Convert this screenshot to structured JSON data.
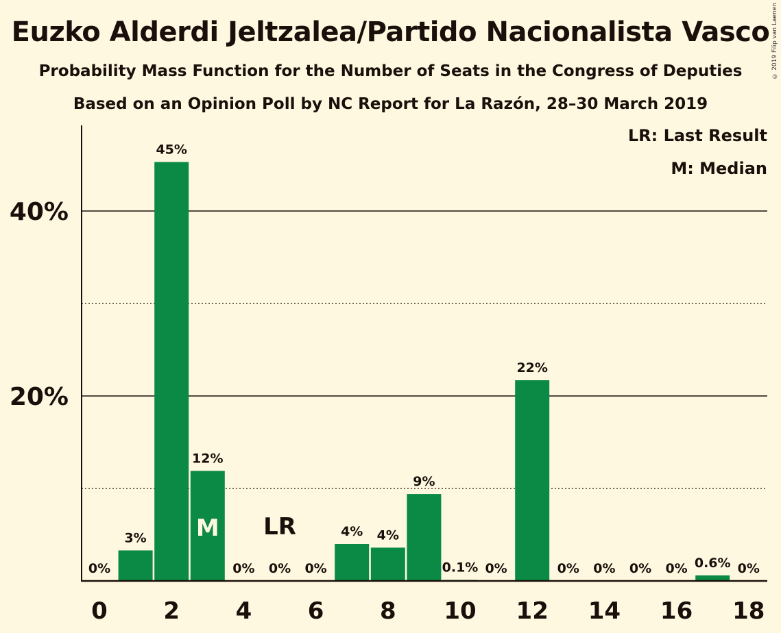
{
  "chart_data": {
    "type": "bar",
    "title": "Euzko Alderdi Jeltzalea/Partido Nacionalista Vasco",
    "subtitle": "Probability Mass Function for the Number of Seats in the Congress of Deputies",
    "subtitle2": "Based on an Opinion Poll by NC Report for La Razón, 28–30 March 2019",
    "copyright": "© 2019 Filip van Laenen",
    "categories": [
      0,
      1,
      2,
      3,
      4,
      5,
      6,
      7,
      8,
      9,
      10,
      11,
      12,
      13,
      14,
      15,
      16,
      17,
      18
    ],
    "values": [
      0,
      3.3,
      45.3,
      11.9,
      0,
      0,
      0,
      4.0,
      3.6,
      9.4,
      0.1,
      0,
      21.7,
      0,
      0,
      0,
      0,
      0.6,
      0
    ],
    "data_labels": [
      "0%",
      "3%",
      "45%",
      "12%",
      "0%",
      "0%",
      "0%",
      "4%",
      "4%",
      "9%",
      "0.1%",
      "0%",
      "22%",
      "0%",
      "0%",
      "0%",
      "0%",
      "0.6%",
      "0%"
    ],
    "x_tick_labels": [
      "0",
      "2",
      "4",
      "6",
      "8",
      "10",
      "12",
      "14",
      "16",
      "18"
    ],
    "y_tick_labels": [
      "20%",
      "40%"
    ],
    "ylim": [
      0,
      49
    ],
    "median": 3,
    "median_label": "M",
    "last_result": 5,
    "last_result_label": "LR",
    "legend": [
      "LR: Last Result",
      "M: Median"
    ],
    "bar_color": "#0A8A45",
    "background_color": "#FFF8E1"
  }
}
